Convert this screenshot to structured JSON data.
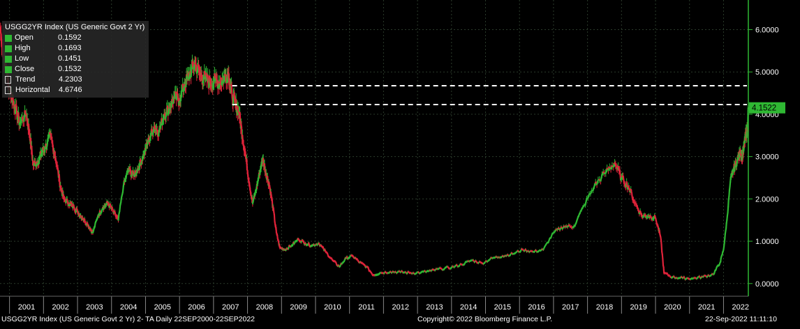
{
  "chart_data": {
    "type": "line",
    "title": "USGG2YR Index (US Generic Govt 2 Yr)",
    "x_axis": {
      "range": [
        2000.72,
        2022.73
      ],
      "tick_labels": [
        "2001",
        "2002",
        "2003",
        "2004",
        "2005",
        "2006",
        "2007",
        "2008",
        "2009",
        "2010",
        "2011",
        "2012",
        "2013",
        "2014",
        "2015",
        "2016",
        "2017",
        "2018",
        "2019",
        "2020",
        "2021",
        "2022"
      ]
    },
    "y_axis": {
      "range": [
        -0.3,
        6.7
      ],
      "tick_labels": [
        "0.0000",
        "1.0000",
        "2.0000",
        "3.0000",
        "4.0000",
        "5.0000",
        "6.0000"
      ],
      "ticks": [
        0,
        1,
        2,
        3,
        4,
        5,
        6
      ]
    },
    "series": [
      {
        "name": "USGG2YR Index",
        "x": [
          2000.72,
          2000.85,
          2001.0,
          2001.15,
          2001.3,
          2001.5,
          2001.6,
          2001.7,
          2001.85,
          2001.95,
          2002.05,
          2002.2,
          2002.35,
          2002.5,
          2002.6,
          2002.75,
          2002.9,
          2003.0,
          2003.15,
          2003.3,
          2003.45,
          2003.6,
          2003.75,
          2003.9,
          2004.05,
          2004.2,
          2004.35,
          2004.5,
          2004.65,
          2004.8,
          2004.95,
          2005.1,
          2005.25,
          2005.4,
          2005.55,
          2005.7,
          2005.85,
          2006.0,
          2006.15,
          2006.3,
          2006.45,
          2006.6,
          2006.75,
          2006.9,
          2007.05,
          2007.2,
          2007.35,
          2007.45,
          2007.55,
          2007.65,
          2007.75,
          2007.85,
          2007.95,
          2008.05,
          2008.15,
          2008.25,
          2008.35,
          2008.45,
          2008.55,
          2008.65,
          2008.75,
          2008.85,
          2008.95,
          2009.1,
          2009.3,
          2009.5,
          2009.7,
          2009.9,
          2010.1,
          2010.3,
          2010.5,
          2010.7,
          2010.9,
          2011.1,
          2011.3,
          2011.5,
          2011.7,
          2011.9,
          2012.2,
          2012.5,
          2012.8,
          2013.1,
          2013.4,
          2013.7,
          2014.0,
          2014.3,
          2014.6,
          2014.9,
          2015.2,
          2015.5,
          2015.8,
          2016.1,
          2016.4,
          2016.7,
          2017.0,
          2017.3,
          2017.6,
          2017.9,
          2018.2,
          2018.5,
          2018.8,
          2019.0,
          2019.2,
          2019.4,
          2019.6,
          2019.8,
          2020.0,
          2020.15,
          2020.25,
          2020.5,
          2020.8,
          2021.1,
          2021.4,
          2021.7,
          2021.9,
          2022.0,
          2022.1,
          2022.2,
          2022.3,
          2022.4,
          2022.5,
          2022.55,
          2022.6,
          2022.65,
          2022.7,
          2022.73
        ],
        "values": [
          6.05,
          5.3,
          4.6,
          4.2,
          3.8,
          4.0,
          3.5,
          2.8,
          2.9,
          3.1,
          3.2,
          3.5,
          3.0,
          2.3,
          2.0,
          1.9,
          1.8,
          1.7,
          1.55,
          1.4,
          1.2,
          1.6,
          1.8,
          1.9,
          1.7,
          1.5,
          2.3,
          2.7,
          2.55,
          2.75,
          3.05,
          3.4,
          3.7,
          3.6,
          4.0,
          4.15,
          4.4,
          4.35,
          4.7,
          4.95,
          5.2,
          4.95,
          4.85,
          4.75,
          4.8,
          4.75,
          4.9,
          4.95,
          4.4,
          4.25,
          4.05,
          3.5,
          3.0,
          2.4,
          1.9,
          2.2,
          2.6,
          2.95,
          2.6,
          2.3,
          1.8,
          1.2,
          0.85,
          0.8,
          0.9,
          1.05,
          0.95,
          0.9,
          0.95,
          0.75,
          0.55,
          0.4,
          0.6,
          0.65,
          0.5,
          0.4,
          0.2,
          0.25,
          0.28,
          0.27,
          0.25,
          0.26,
          0.3,
          0.35,
          0.38,
          0.45,
          0.55,
          0.48,
          0.6,
          0.65,
          0.7,
          0.8,
          0.75,
          0.8,
          1.2,
          1.35,
          1.35,
          1.85,
          2.3,
          2.6,
          2.85,
          2.5,
          2.3,
          1.9,
          1.6,
          1.6,
          1.55,
          1.1,
          0.25,
          0.15,
          0.13,
          0.12,
          0.16,
          0.22,
          0.5,
          0.8,
          1.5,
          2.4,
          2.7,
          2.9,
          3.1,
          3.0,
          3.2,
          3.5,
          3.6,
          4.1522
        ]
      },
      {
        "name": "Trend",
        "value": 4.2303
      },
      {
        "name": "Horizontal",
        "value": 4.6746
      }
    ],
    "annotations": [
      {
        "text": "4.1522",
        "y": 4.1522
      }
    ],
    "grid": true,
    "legend_position": "top-left"
  },
  "legend": {
    "title": "USGG2YR Index (US Generic Govt 2 Yr)",
    "rows": [
      {
        "label": "Open",
        "value": "0.1592"
      },
      {
        "label": "High",
        "value": "0.1693"
      },
      {
        "label": "Low",
        "value": "0.1451"
      },
      {
        "label": "Close",
        "value": "0.1532"
      },
      {
        "label": "Trend",
        "value": "4.2303"
      },
      {
        "label": "Horizontal",
        "value": "4.6746"
      }
    ]
  },
  "footer": {
    "left": "USGG2YR Index (US Generic Govt 2 Yr) 2- TA  Daily 22SEP2000-22SEP2022",
    "center": "Copyright© 2022 Bloomberg Finance L.P.",
    "right": "22-Sep-2022 11:11:10"
  },
  "colors": {
    "up": "#2fb833",
    "down": "#e0233a",
    "axis": "#2fb833",
    "grid": "#2b3b2b",
    "last_label_bg": "#2fb833"
  }
}
